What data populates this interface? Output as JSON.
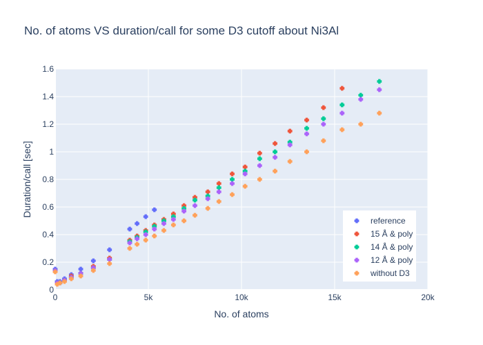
{
  "chart_data": {
    "type": "scatter",
    "title": "No. of atoms VS duration/call for some D3 cutoff about Ni3Al",
    "xlabel": "No. of atoms",
    "ylabel": "Duration/call [sec]",
    "xlim": [
      0,
      20000
    ],
    "ylim": [
      0,
      1.6
    ],
    "x_ticks": [
      0,
      5000,
      10000,
      15000,
      20000
    ],
    "x_tick_labels": [
      "0",
      "5k",
      "10k",
      "15k",
      "20k"
    ],
    "y_ticks": [
      0,
      0.2,
      0.4,
      0.6,
      0.8,
      1,
      1.2,
      1.4,
      1.6
    ],
    "y_tick_labels": [
      "0",
      "0.2",
      "0.4",
      "0.6",
      "0.8",
      "1",
      "1.2",
      "1.4",
      "1.6"
    ],
    "legend_position": "bottom-right",
    "marker": "cross",
    "series": [
      {
        "name": "reference",
        "color": "#636efa",
        "points": [
          [
            0,
            0.15
          ],
          [
            108,
            0.06
          ],
          [
            256,
            0.06
          ],
          [
            500,
            0.08
          ],
          [
            864,
            0.11
          ],
          [
            1372,
            0.15
          ],
          [
            2048,
            0.21
          ],
          [
            2916,
            0.29
          ],
          [
            4000,
            0.44
          ],
          [
            4394,
            0.48
          ],
          [
            4860,
            0.53
          ],
          [
            5324,
            0.58
          ]
        ]
      },
      {
        "name": "15 Å & poly",
        "color": "#ef553b",
        "points": [
          [
            0,
            0.14
          ],
          [
            108,
            0.05
          ],
          [
            256,
            0.05
          ],
          [
            500,
            0.07
          ],
          [
            864,
            0.1
          ],
          [
            1372,
            0.12
          ],
          [
            2048,
            0.17
          ],
          [
            2916,
            0.23
          ],
          [
            4000,
            0.36
          ],
          [
            4394,
            0.39
          ],
          [
            4860,
            0.43
          ],
          [
            5324,
            0.47
          ],
          [
            5832,
            0.51
          ],
          [
            6346,
            0.55
          ],
          [
            6912,
            0.61
          ],
          [
            7500,
            0.67
          ],
          [
            8192,
            0.71
          ],
          [
            8788,
            0.77
          ],
          [
            9500,
            0.84
          ],
          [
            10192,
            0.89
          ],
          [
            10976,
            0.99
          ],
          [
            11800,
            1.06
          ],
          [
            12600,
            1.15
          ],
          [
            13500,
            1.23
          ],
          [
            14400,
            1.32
          ],
          [
            15400,
            1.46
          ]
        ]
      },
      {
        "name": "14 Å & poly",
        "color": "#00cc96",
        "points": [
          [
            0,
            0.14
          ],
          [
            108,
            0.05
          ],
          [
            256,
            0.05
          ],
          [
            500,
            0.07
          ],
          [
            864,
            0.09
          ],
          [
            1372,
            0.12
          ],
          [
            2048,
            0.16
          ],
          [
            2916,
            0.22
          ],
          [
            4000,
            0.35
          ],
          [
            4394,
            0.38
          ],
          [
            4860,
            0.42
          ],
          [
            5324,
            0.46
          ],
          [
            5832,
            0.5
          ],
          [
            6346,
            0.53
          ],
          [
            6912,
            0.59
          ],
          [
            7500,
            0.65
          ],
          [
            8192,
            0.68
          ],
          [
            8788,
            0.74
          ],
          [
            9500,
            0.8
          ],
          [
            10192,
            0.86
          ],
          [
            10976,
            0.95
          ],
          [
            11800,
            1.0
          ],
          [
            12600,
            1.07
          ],
          [
            13500,
            1.17
          ],
          [
            14400,
            1.24
          ],
          [
            15400,
            1.34
          ],
          [
            16400,
            1.41
          ],
          [
            17400,
            1.51
          ]
        ]
      },
      {
        "name": "12 Å & poly",
        "color": "#ab63fa",
        "points": [
          [
            0,
            0.14
          ],
          [
            108,
            0.05
          ],
          [
            256,
            0.05
          ],
          [
            500,
            0.07
          ],
          [
            864,
            0.09
          ],
          [
            1372,
            0.12
          ],
          [
            2048,
            0.16
          ],
          [
            2916,
            0.22
          ],
          [
            4000,
            0.34
          ],
          [
            4394,
            0.37
          ],
          [
            4860,
            0.4
          ],
          [
            5324,
            0.44
          ],
          [
            5832,
            0.48
          ],
          [
            6346,
            0.51
          ],
          [
            6912,
            0.57
          ],
          [
            7500,
            0.61
          ],
          [
            8192,
            0.66
          ],
          [
            8788,
            0.71
          ],
          [
            9500,
            0.77
          ],
          [
            10192,
            0.84
          ],
          [
            10976,
            0.9
          ],
          [
            11800,
            0.96
          ],
          [
            12600,
            1.05
          ],
          [
            13500,
            1.13
          ],
          [
            14400,
            1.2
          ],
          [
            15400,
            1.28
          ],
          [
            16400,
            1.38
          ],
          [
            17400,
            1.45
          ]
        ]
      },
      {
        "name": "without D3",
        "color": "#ffa15a",
        "points": [
          [
            0,
            0.13
          ],
          [
            108,
            0.04
          ],
          [
            256,
            0.05
          ],
          [
            500,
            0.06
          ],
          [
            864,
            0.08
          ],
          [
            1372,
            0.1
          ],
          [
            2048,
            0.14
          ],
          [
            2916,
            0.19
          ],
          [
            4000,
            0.3
          ],
          [
            4394,
            0.33
          ],
          [
            4860,
            0.36
          ],
          [
            5324,
            0.39
          ],
          [
            5832,
            0.43
          ],
          [
            6346,
            0.47
          ],
          [
            6912,
            0.5
          ],
          [
            7500,
            0.54
          ],
          [
            8192,
            0.59
          ],
          [
            8788,
            0.64
          ],
          [
            9500,
            0.69
          ],
          [
            10192,
            0.75
          ],
          [
            10976,
            0.8
          ],
          [
            11800,
            0.86
          ],
          [
            12600,
            0.93
          ],
          [
            13500,
            1.0
          ],
          [
            14400,
            1.08
          ],
          [
            15400,
            1.16
          ],
          [
            16400,
            1.2
          ],
          [
            17400,
            1.28
          ]
        ]
      }
    ]
  }
}
